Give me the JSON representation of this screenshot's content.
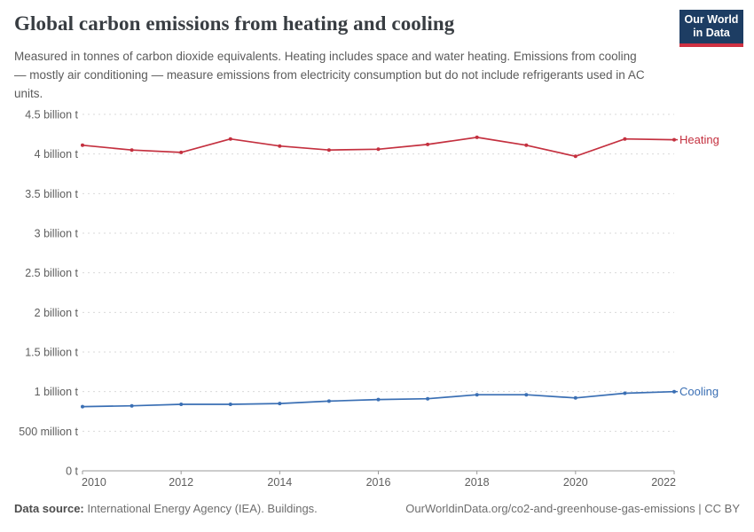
{
  "header": {
    "title": "Global carbon emissions from heating and cooling",
    "subtitle": "Measured in tonnes of carbon dioxide equivalents. Heating includes space and water heating. Emissions from cooling — mostly air conditioning — measure emissions from electricity consumption but do not include refrigerants used in AC units.",
    "logo": {
      "line1": "Our World",
      "line2": "in Data",
      "bg_color": "#1d3d63",
      "accent_color": "#cf3142"
    }
  },
  "chart_data": {
    "type": "line",
    "title": "Global carbon emissions from heating and cooling",
    "x": [
      2010,
      2011,
      2012,
      2013,
      2014,
      2015,
      2016,
      2017,
      2018,
      2019,
      2020,
      2021,
      2022
    ],
    "series": [
      {
        "name": "Heating",
        "color": "#c4303f",
        "unit": "billion t",
        "values": [
          4.11,
          4.05,
          4.02,
          4.19,
          4.1,
          4.05,
          4.06,
          4.12,
          4.21,
          4.11,
          3.97,
          4.19,
          4.18
        ]
      },
      {
        "name": "Cooling",
        "color": "#3a6fb4",
        "unit": "billion t",
        "values": [
          0.81,
          0.82,
          0.84,
          0.84,
          0.85,
          0.88,
          0.9,
          0.91,
          0.96,
          0.96,
          0.92,
          0.98,
          1.0
        ]
      }
    ],
    "ylim": [
      0,
      4.5
    ],
    "ytick_step": 0.5,
    "ytick_labels": [
      "0 t",
      "500 million t",
      "1 billion t",
      "1.5 billion t",
      "2 billion t",
      "2.5 billion t",
      "3 billion t",
      "3.5 billion t",
      "4 billion t",
      "4.5 billion t"
    ],
    "xticks": [
      2010,
      2012,
      2014,
      2016,
      2018,
      2020,
      2022
    ],
    "grid": "horizontal-dashed",
    "legend_position": "right-end-labels"
  },
  "footer": {
    "source_label": "Data source:",
    "source_text": " International Energy Agency (IEA). Buildings.",
    "link_text": "OurWorldinData.org/co2-and-greenhouse-gas-emissions | CC BY"
  }
}
